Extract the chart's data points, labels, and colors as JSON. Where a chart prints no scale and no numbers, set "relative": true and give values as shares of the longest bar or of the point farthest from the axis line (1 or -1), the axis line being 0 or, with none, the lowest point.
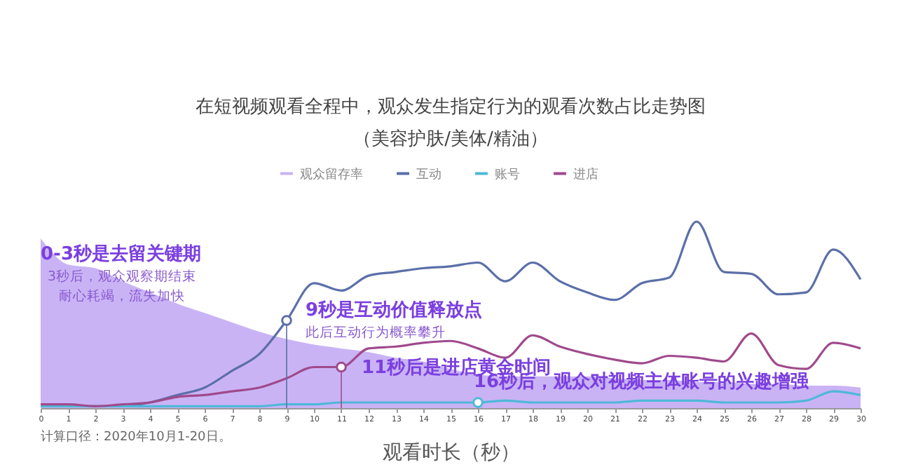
{
  "chart_data": {
    "type": "line",
    "title": "在短视频观看全程中，观众发生指定行为的观看次数占比走势图",
    "subtitle": "（美容护肤/美体/精油）",
    "xlabel": "观看时长（秒）",
    "relative": true,
    "x": [
      0,
      1,
      2,
      3,
      4,
      5,
      6,
      7,
      8,
      9,
      10,
      11,
      12,
      13,
      14,
      15,
      16,
      17,
      18,
      19,
      20,
      21,
      22,
      23,
      24,
      25,
      26,
      27,
      28,
      29,
      30
    ],
    "xlim": [
      0,
      30
    ],
    "xticks": [
      0,
      1,
      2,
      3,
      4,
      5,
      6,
      7,
      8,
      9,
      10,
      11,
      12,
      13,
      14,
      15,
      16,
      17,
      18,
      19,
      20,
      21,
      22,
      23,
      24,
      25,
      26,
      27,
      28,
      29,
      30
    ],
    "series": [
      {
        "name": "观众留存率",
        "type": "area",
        "color": "#c9b3f5",
        "values": [
          0.91,
          0.77,
          0.75,
          0.68,
          0.62,
          0.56,
          0.51,
          0.46,
          0.41,
          0.37,
          0.34,
          0.32,
          0.3,
          0.27,
          0.25,
          0.21,
          0.18,
          0.17,
          0.17,
          0.17,
          0.17,
          0.16,
          0.15,
          0.15,
          0.14,
          0.14,
          0.13,
          0.13,
          0.12,
          0.12,
          0.11
        ]
      },
      {
        "name": "互动",
        "color": "#5b6fa8",
        "values": [
          0.01,
          0.01,
          0.01,
          0.01,
          0.03,
          0.07,
          0.11,
          0.2,
          0.29,
          0.47,
          0.67,
          0.63,
          0.71,
          0.73,
          0.75,
          0.76,
          0.78,
          0.68,
          0.78,
          0.68,
          0.62,
          0.58,
          0.67,
          0.7,
          1,
          0.73,
          0.72,
          0.61,
          0.62,
          0.85,
          0.69
        ]
      },
      {
        "name": "账号",
        "color": "#4fb8d8",
        "values": [
          0.01,
          0.01,
          0.01,
          0.01,
          0.01,
          0.01,
          0.01,
          0.01,
          0.01,
          0.02,
          0.02,
          0.03,
          0.03,
          0.03,
          0.03,
          0.03,
          0.03,
          0.04,
          0.03,
          0.03,
          0.03,
          0.03,
          0.04,
          0.04,
          0.04,
          0.03,
          0.03,
          0.03,
          0.04,
          0.09,
          0.07
        ]
      },
      {
        "name": "进店",
        "color": "#a04a8c",
        "values": [
          0.02,
          0.02,
          0.01,
          0.02,
          0.03,
          0.06,
          0.07,
          0.09,
          0.11,
          0.16,
          0.22,
          0.22,
          0.32,
          0.33,
          0.35,
          0.36,
          0.32,
          0.27,
          0.39,
          0.33,
          0.29,
          0.26,
          0.24,
          0.28,
          0.27,
          0.25,
          0.4,
          0.23,
          0.21,
          0.35,
          0.32
        ]
      }
    ],
    "legend": "top",
    "annotations": [
      "0-3秒是去留关键期",
      "3秒后，观众观察期结束",
      "耐心耗竭，流失加快",
      {
        "text": "9秒是互动价值释放点",
        "x": 9,
        "y": 0.47
      },
      "此后互动行为概率攀升",
      {
        "text": "11秒后是进店黄金时间",
        "x": 11,
        "y": 0.22
      },
      {
        "text": "16秒后，观众对视频主体账号的兴趣增强",
        "x": 16,
        "y": 0.03
      },
      "计算口径：2020年10月1-20日。"
    ]
  }
}
